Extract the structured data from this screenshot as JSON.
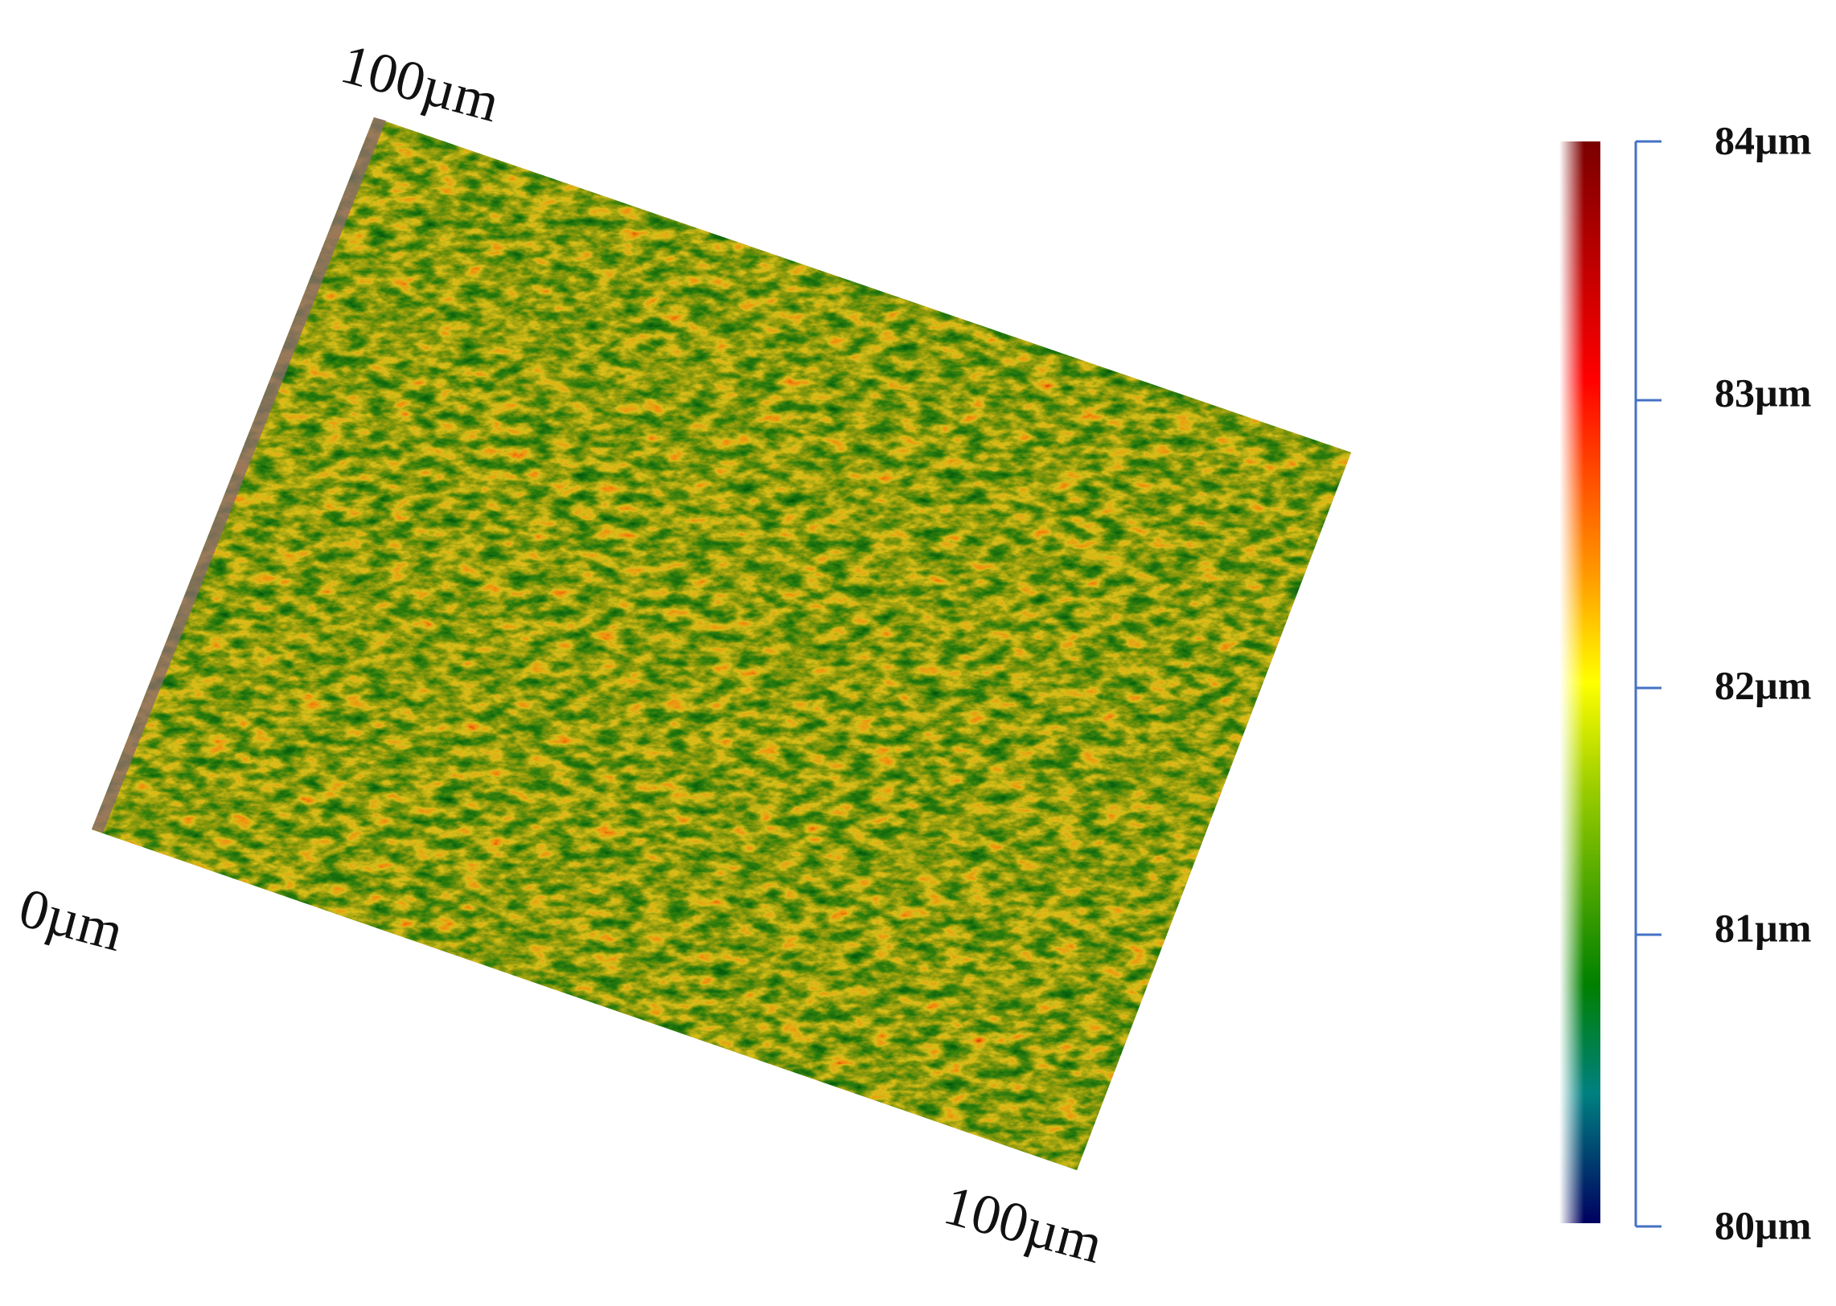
{
  "surface": {
    "corner_labels": {
      "top": "100µm",
      "origin": "0µm",
      "bottom": "100µm"
    }
  },
  "colorbar": {
    "labels": [
      "84µm",
      "83µm",
      "82µm",
      "81µm",
      "80µm"
    ]
  }
}
